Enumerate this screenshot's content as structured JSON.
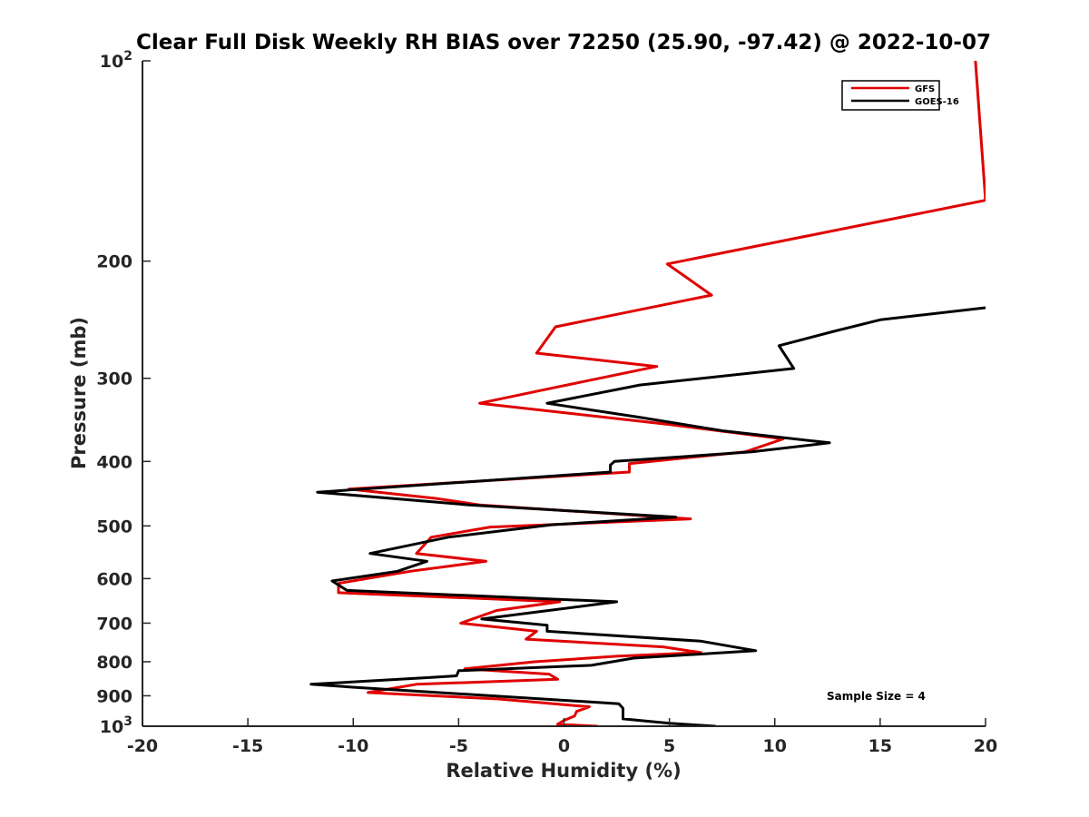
{
  "chart_data": {
    "type": "line",
    "title": "Clear Full Disk Weekly RH BIAS over 72250 (25.90, -97.42) @ 2022-10-07",
    "xlabel": "Relative Humidity (%)",
    "ylabel": "Pressure (mb)",
    "xlim": [
      -20,
      20
    ],
    "ylim": [
      100,
      1000
    ],
    "y_scale": "log",
    "y_reversed": true,
    "x_ticks": [
      -20,
      -15,
      -10,
      -5,
      0,
      5,
      10,
      15,
      20
    ],
    "x_tick_labels": [
      "-20",
      "-15",
      "-10",
      "-5",
      "0",
      "5",
      "10",
      "15",
      "20"
    ],
    "y_ticks": [
      {
        "value": 100,
        "base": "10",
        "exp": "2"
      },
      {
        "value": 200,
        "label": "200"
      },
      {
        "value": 300,
        "label": "300"
      },
      {
        "value": 400,
        "label": "400"
      },
      {
        "value": 500,
        "label": "500"
      },
      {
        "value": 600,
        "label": "600"
      },
      {
        "value": 700,
        "label": "700"
      },
      {
        "value": 800,
        "label": "800"
      },
      {
        "value": 900,
        "label": "900"
      },
      {
        "value": 1000,
        "base": "10",
        "exp": "3"
      }
    ],
    "legend_position": "top-right",
    "annotation": "Sample Size = 4",
    "series": [
      {
        "name": "GFS",
        "color": "#e00000",
        "points": [
          [
            20.5,
            100
          ],
          [
            19.5,
            98
          ],
          [
            20.0,
            162
          ],
          [
            4.9,
            202
          ],
          [
            7.0,
            225
          ],
          [
            -0.4,
            251
          ],
          [
            -1.3,
            275
          ],
          [
            4.4,
            288
          ],
          [
            -0.5,
            310
          ],
          [
            -4.0,
            327
          ],
          [
            5.0,
            352
          ],
          [
            10.4,
            370
          ],
          [
            8.6,
            387
          ],
          [
            3.1,
            403
          ],
          [
            3.1,
            415
          ],
          [
            -10.2,
            440
          ],
          [
            -6.0,
            455
          ],
          [
            -4.0,
            465
          ],
          [
            6.0,
            488
          ],
          [
            -3.5,
            502
          ],
          [
            -6.3,
            520
          ],
          [
            -7.0,
            550
          ],
          [
            -3.7,
            565
          ],
          [
            -7.3,
            585
          ],
          [
            -10.7,
            610
          ],
          [
            -10.7,
            630
          ],
          [
            -0.2,
            650
          ],
          [
            -3.2,
            670
          ],
          [
            -4.9,
            700
          ],
          [
            -1.3,
            720
          ],
          [
            -1.8,
            740
          ],
          [
            4.7,
            760
          ],
          [
            6.5,
            775
          ],
          [
            2.5,
            785
          ],
          [
            -1.4,
            800
          ],
          [
            -4.7,
            820
          ],
          [
            -0.7,
            835
          ],
          [
            -0.3,
            850
          ],
          [
            -7.0,
            865
          ],
          [
            -9.3,
            890
          ],
          [
            -3.1,
            910
          ],
          [
            1.2,
            935
          ],
          [
            0.6,
            950
          ],
          [
            0.5,
            965
          ],
          [
            0.0,
            980
          ],
          [
            -0.3,
            993
          ],
          [
            1.6,
            1000
          ]
        ]
      },
      {
        "name": "GOES-16",
        "color": "#000000",
        "points": [
          [
            20.0,
            235
          ],
          [
            15.0,
            245
          ],
          [
            12.8,
            255
          ],
          [
            10.2,
            268
          ],
          [
            10.9,
            290
          ],
          [
            3.6,
            307
          ],
          [
            -0.8,
            327
          ],
          [
            3.5,
            343
          ],
          [
            7.6,
            360
          ],
          [
            12.6,
            375
          ],
          [
            8.9,
            387
          ],
          [
            2.4,
            400
          ],
          [
            2.2,
            405
          ],
          [
            2.2,
            415
          ],
          [
            -11.7,
            445
          ],
          [
            -4.5,
            465
          ],
          [
            5.3,
            485
          ],
          [
            -0.6,
            498
          ],
          [
            -5.5,
            520
          ],
          [
            -9.2,
            550
          ],
          [
            -6.5,
            565
          ],
          [
            -7.9,
            585
          ],
          [
            -11.0,
            605
          ],
          [
            -10.3,
            625
          ],
          [
            2.5,
            650
          ],
          [
            -3.9,
            690
          ],
          [
            -0.8,
            705
          ],
          [
            -0.8,
            720
          ],
          [
            6.5,
            745
          ],
          [
            9.1,
            770
          ],
          [
            3.3,
            790
          ],
          [
            1.3,
            810
          ],
          [
            -5.0,
            825
          ],
          [
            -5.1,
            840
          ],
          [
            -6.4,
            845
          ],
          [
            -12.0,
            865
          ],
          [
            -9.7,
            875
          ],
          [
            2.6,
            925
          ],
          [
            2.8,
            940
          ],
          [
            2.8,
            960
          ],
          [
            2.8,
            975
          ],
          [
            5.0,
            990
          ],
          [
            7.2,
            1000
          ]
        ]
      }
    ]
  }
}
